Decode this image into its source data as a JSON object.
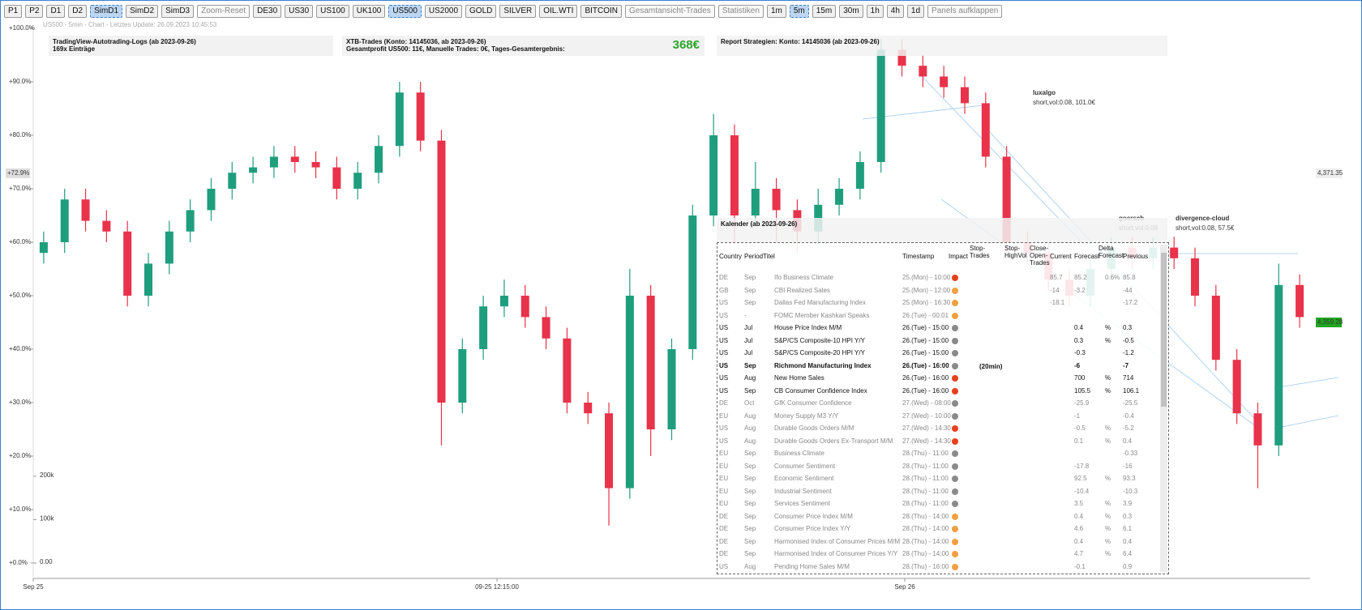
{
  "toolbar": {
    "buttons": [
      "P1",
      "P2",
      "D1",
      "D2",
      "SimD1",
      "SimD2",
      "SimD3",
      "Zoom-Reset",
      "DE30",
      "US30",
      "US100",
      "UK100",
      "US500",
      "US2000",
      "GOLD",
      "SILVER",
      "OIL.WTI",
      "BITCOIN",
      "Gesamtansicht-Trades",
      "Statistiken",
      "1m",
      "5m",
      "15m",
      "30m",
      "1h",
      "4h",
      "1d",
      "Panels aufklappen"
    ],
    "active": [
      "SimD1",
      "US500",
      "5m"
    ],
    "disabled": [
      "Zoom-Reset",
      "Gesamtansicht-Trades",
      "Statistiken",
      "Panels aufklappen"
    ]
  },
  "subtitle": "US500 - 5min - Chart - Letztes Update: 26.09.2023 10:45:53",
  "panels": {
    "logs": {
      "title": "TradingView-Autotrading-Logs (ab 2023-09-26)",
      "text": "169x Einträge"
    },
    "trades": {
      "title": "XTB-Trades (Konto: 14145036, ab 2023-09-26)",
      "text": "Gesamtprofit US500: 11€, Manuelle Trades: 0€, Tages-Gesamtergebnis:",
      "total": "368€"
    },
    "report": {
      "title": "Report Strategien: Konto: 14145036 (ab 2023-09-26)"
    }
  },
  "chart_data": {
    "type": "candlestick",
    "candles": [
      [
        58,
        62,
        56,
        60
      ],
      [
        60,
        70,
        58,
        68
      ],
      [
        68,
        70,
        62,
        64
      ],
      [
        64,
        66,
        60,
        62
      ],
      [
        62,
        64,
        48,
        50
      ],
      [
        50,
        58,
        48,
        56
      ],
      [
        56,
        64,
        54,
        62
      ],
      [
        62,
        68,
        60,
        66
      ],
      [
        66,
        72,
        64,
        70
      ],
      [
        70,
        75,
        68,
        73
      ],
      [
        73,
        76,
        71,
        74
      ],
      [
        74,
        78,
        72,
        76
      ],
      [
        76,
        78,
        73,
        75
      ],
      [
        75,
        77,
        72,
        74
      ],
      [
        74,
        76,
        68,
        70
      ],
      [
        70,
        75,
        68,
        73
      ],
      [
        73,
        80,
        71,
        78
      ],
      [
        78,
        90,
        76,
        88
      ],
      [
        88,
        90,
        77,
        79
      ],
      [
        79,
        81,
        22,
        30
      ],
      [
        30,
        42,
        28,
        40
      ],
      [
        40,
        50,
        38,
        48
      ],
      [
        48,
        53,
        46,
        50
      ],
      [
        50,
        52,
        44,
        46
      ],
      [
        46,
        48,
        40,
        42
      ],
      [
        42,
        44,
        28,
        30
      ],
      [
        30,
        32,
        26,
        28
      ],
      [
        28,
        30,
        7,
        14
      ],
      [
        14,
        55,
        12,
        50
      ],
      [
        50,
        52,
        20,
        25
      ],
      [
        25,
        42,
        23,
        40
      ],
      [
        40,
        67,
        38,
        65
      ],
      [
        65,
        84,
        63,
        80
      ],
      [
        80,
        82,
        60,
        65
      ],
      [
        65,
        75,
        63,
        70
      ],
      [
        70,
        72,
        60,
        66
      ],
      [
        66,
        68,
        58,
        62
      ],
      [
        62,
        70,
        60,
        67
      ],
      [
        67,
        72,
        65,
        70
      ],
      [
        70,
        77,
        68,
        75
      ],
      [
        75,
        98,
        73,
        96
      ],
      [
        96,
        98,
        91,
        93
      ],
      [
        93,
        95,
        89,
        91
      ],
      [
        91,
        93,
        87,
        89
      ],
      [
        89,
        91,
        84,
        86
      ],
      [
        86,
        88,
        74,
        76
      ],
      [
        76,
        78,
        58,
        60
      ],
      [
        60,
        62,
        56,
        58
      ],
      [
        58,
        60,
        51,
        53
      ],
      [
        53,
        55,
        48,
        50
      ],
      [
        50,
        57,
        48,
        55
      ],
      [
        55,
        61,
        53,
        59
      ],
      [
        59,
        61,
        55,
        57
      ],
      [
        57,
        61,
        55,
        59
      ],
      [
        59,
        61,
        55,
        57
      ],
      [
        57,
        59,
        48,
        50
      ],
      [
        50,
        52,
        36,
        38
      ],
      [
        38,
        40,
        26,
        28
      ],
      [
        28,
        30,
        14,
        22
      ],
      [
        22,
        56,
        20,
        52
      ],
      [
        52,
        54,
        44,
        46
      ]
    ],
    "up_color": "#1f9e7e",
    "down_color": "#e8334a",
    "ylim": [
      0,
      100
    ],
    "yticks": [
      {
        "value": 0,
        "label": "+0.0%"
      },
      {
        "value": 10,
        "label": "+10.0%"
      },
      {
        "value": 20,
        "label": "+20.0%"
      },
      {
        "value": 30,
        "label": "+30.0%"
      },
      {
        "value": 40,
        "label": "+40.0%"
      },
      {
        "value": 50,
        "label": "+50.0%"
      },
      {
        "value": 60,
        "label": "+60.0%"
      },
      {
        "value": 70,
        "label": "+70.0%"
      },
      {
        "value": 80,
        "label": "+80.0%"
      },
      {
        "value": 90,
        "label": "+90.0%"
      },
      {
        "value": 100,
        "label": "+100.0%"
      }
    ],
    "y2lim": [
      0,
      1232000
    ],
    "y2ticks": [
      {
        "value": 0,
        "label": "0.00"
      },
      {
        "value": 100000,
        "label": "100k"
      },
      {
        "value": 200000,
        "label": "200k"
      }
    ],
    "x_labels": [
      "Sep 25",
      "09-25 12:15:00",
      "Sep 26"
    ],
    "current": {
      "value": 72.9,
      "label": "+72.9%"
    },
    "price_labels": [
      "4,371.35",
      "4,359.28"
    ],
    "annotations": [
      {
        "name": "luxalgo",
        "text": "short,vol:0.08, 101.0€"
      },
      {
        "name": "goersch",
        "text": "short,vol:0.08"
      },
      {
        "name": "divergence-cloud",
        "text": "short,vol:0.08, 57.5€"
      }
    ]
  },
  "calendar": {
    "title": "Kalender (ab 2023-09-26)",
    "headers": [
      "Country",
      "Period",
      "Titel",
      "Timestamp",
      "Impact",
      "Stop-Trades",
      "Stop-HighVol",
      "Close-Open-Trades",
      "Current",
      "Forecast",
      "Delta Forecast",
      "Previous"
    ],
    "rows": [
      {
        "cells": [
          "DE",
          "Sep",
          "Ifo Business Climate",
          "25.(Mon) - 10:00",
          "85.7",
          "85.2",
          "0.6%",
          "85.8"
        ],
        "impact": 3
      },
      {
        "cells": [
          "GB",
          "Sep",
          "CBI Realized Sales",
          "25.(Mon) - 12:00",
          "-14",
          "-3.2",
          "",
          "-44"
        ],
        "impact": 2
      },
      {
        "cells": [
          "US",
          "Sep",
          "Dallas Fed Manufacturing Index",
          "25.(Mon) - 16:30",
          "-18.1",
          "",
          "",
          "-17.2"
        ],
        "impact": 2
      },
      {
        "cells": [
          "US",
          "-",
          "FOMC Member Kashkari Speaks",
          "26.(Tue) - 00:01",
          "",
          "",
          "",
          ""
        ],
        "impact": 2
      },
      {
        "cells": [
          "US",
          "Jul",
          "House Price Index M/M",
          "26.(Tue) - 15:00",
          "",
          "0.4",
          "%",
          "0.3"
        ],
        "impact": 1
      },
      {
        "cells": [
          "US",
          "Jul",
          "S&P/CS Composite-10 HPI Y/Y",
          "26.(Tue) - 15:00",
          "",
          "0.3",
          "%",
          "-0.5"
        ],
        "impact": 1
      },
      {
        "cells": [
          "US",
          "Jul",
          "S&P/CS Composite-20 HPI Y/Y",
          "26.(Tue) - 15:00",
          "",
          "-0.3",
          "",
          "-1.2"
        ],
        "impact": 1
      },
      {
        "cells": [
          "US",
          "Sep",
          "Richmond Manufacturing Index",
          "26.(Tue) - 16:00",
          "",
          "-6",
          "",
          "-7"
        ],
        "impact": 1,
        "note": "(20min)"
      },
      {
        "cells": [
          "US",
          "Aug",
          "New Home Sales",
          "26.(Tue) - 16:00",
          "",
          "700",
          "%",
          "714"
        ],
        "impact": 3
      },
      {
        "cells": [
          "US",
          "Sep",
          "CB Consumer Confidence Index",
          "26.(Tue) - 16:00",
          "",
          "105.5",
          "%",
          "106.1"
        ],
        "impact": 3
      },
      {
        "cells": [
          "DE",
          "Oct",
          "GfK Consumer Confidence",
          "27.(Wed) - 08:00",
          "",
          "-25.9",
          "",
          "-25.5"
        ],
        "impact": 1
      },
      {
        "cells": [
          "EU",
          "Aug",
          "Money Supply M3 Y/Y",
          "27.(Wed) - 10:00",
          "",
          "-1",
          "",
          "-0.4"
        ],
        "impact": 1
      },
      {
        "cells": [
          "US",
          "Aug",
          "Durable Goods Orders M/M",
          "27.(Wed) - 14:30",
          "",
          "-0.5",
          "%",
          "-5.2"
        ],
        "impact": 3
      },
      {
        "cells": [
          "US",
          "Aug",
          "Durable Goods Orders Ex-Transport M/M",
          "27.(Wed) - 14:30",
          "",
          "0.1",
          "%",
          "0.4"
        ],
        "impact": 3
      },
      {
        "cells": [
          "EU",
          "Sep",
          "Business Climate",
          "28.(Thu) - 11:00",
          "",
          "",
          "",
          "-0.33"
        ],
        "impact": 1
      },
      {
        "cells": [
          "EU",
          "Sep",
          "Consumer Sentiment",
          "28.(Thu) - 11:00",
          "",
          "-17.8",
          "",
          "-16"
        ],
        "impact": 1
      },
      {
        "cells": [
          "EU",
          "Sep",
          "Economic Sentiment",
          "28.(Thu) - 11:00",
          "",
          "92.5",
          "%",
          "93.3"
        ],
        "impact": 1
      },
      {
        "cells": [
          "EU",
          "Sep",
          "Industrial Sentiment",
          "28.(Thu) - 11:00",
          "",
          "-10.4",
          "",
          "-10.3"
        ],
        "impact": 1
      },
      {
        "cells": [
          "EU",
          "Sep",
          "Services Sentiment",
          "28.(Thu) - 11:00",
          "",
          "3.5",
          "%",
          "3.9"
        ],
        "impact": 1
      },
      {
        "cells": [
          "DE",
          "Sep",
          "Consumer Price Index M/M",
          "28.(Thu) - 14:00",
          "",
          "0.4",
          "%",
          "0.3"
        ],
        "impact": 2
      },
      {
        "cells": [
          "DE",
          "Sep",
          "Consumer Price Index Y/Y",
          "28.(Thu) - 14:00",
          "",
          "4.6",
          "%",
          "6.1"
        ],
        "impact": 2
      },
      {
        "cells": [
          "DE",
          "Sep",
          "Harmonised Index of Consumer Prices M/M",
          "28.(Thu) - 14:00",
          "",
          "0.4",
          "%",
          "0.4"
        ],
        "impact": 2
      },
      {
        "cells": [
          "DE",
          "Sep",
          "Harmonised Index of Consumer Prices Y/Y",
          "28.(Thu) - 14:00",
          "",
          "4.7",
          "%",
          "6.4"
        ],
        "impact": 2
      },
      {
        "cells": [
          "US",
          "Aug",
          "Pending Home Sales M/M",
          "28.(Thu) - 16:00",
          "",
          "-0.1",
          "",
          "0.9"
        ],
        "impact": 2
      }
    ]
  }
}
